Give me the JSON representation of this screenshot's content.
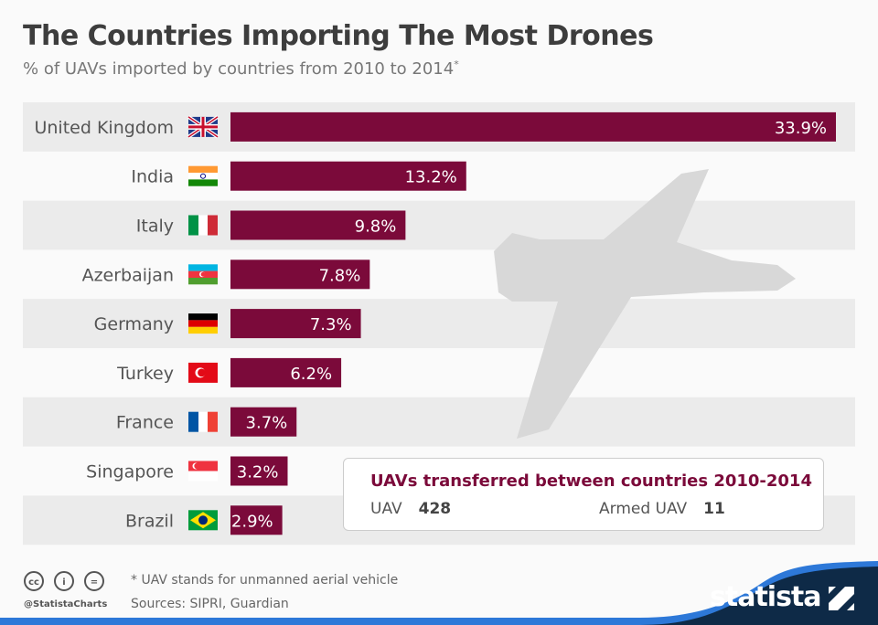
{
  "title": "The Countries Importing The Most Drones",
  "subtitle": "% of UAVs imported by countries from 2010 to 2014",
  "subtitle_mark": "*",
  "chart_data": {
    "type": "bar",
    "orientation": "horizontal",
    "categories": [
      "United Kingdom",
      "India",
      "Italy",
      "Azerbaijan",
      "Germany",
      "Turkey",
      "France",
      "Singapore",
      "Brazil"
    ],
    "values": [
      33.9,
      13.2,
      9.8,
      7.8,
      7.3,
      6.2,
      3.7,
      3.2,
      2.9
    ],
    "labels": [
      "33.9%",
      "13.2%",
      "9.8%",
      "7.8%",
      "7.3%",
      "6.2%",
      "3.7%",
      "3.2%",
      "2.9%"
    ],
    "flags": [
      "uk-flag",
      "india-flag",
      "italy-flag",
      "azerbaijan-flag",
      "germany-flag",
      "turkey-flag",
      "france-flag",
      "singapore-flag",
      "brazil-flag"
    ],
    "bar_color": "#7b0a3a",
    "stripe_color": "#ebebeb"
  },
  "infobox": {
    "title": "UAVs transferred between countries 2010-2014",
    "uav_label": "UAV",
    "uav_value": "428",
    "armed_label": "Armed UAV",
    "armed_value": "11"
  },
  "footer": {
    "note": "* UAV stands for unmanned aerial vehicle",
    "sources": "Sources: SIPRI, Guardian",
    "handle": "@StatistaCharts",
    "cc": "cc",
    "by": "i",
    "nd": "="
  },
  "brand": {
    "logo": "statista",
    "color": "#0e2a47",
    "accent": "#2d78d8"
  }
}
